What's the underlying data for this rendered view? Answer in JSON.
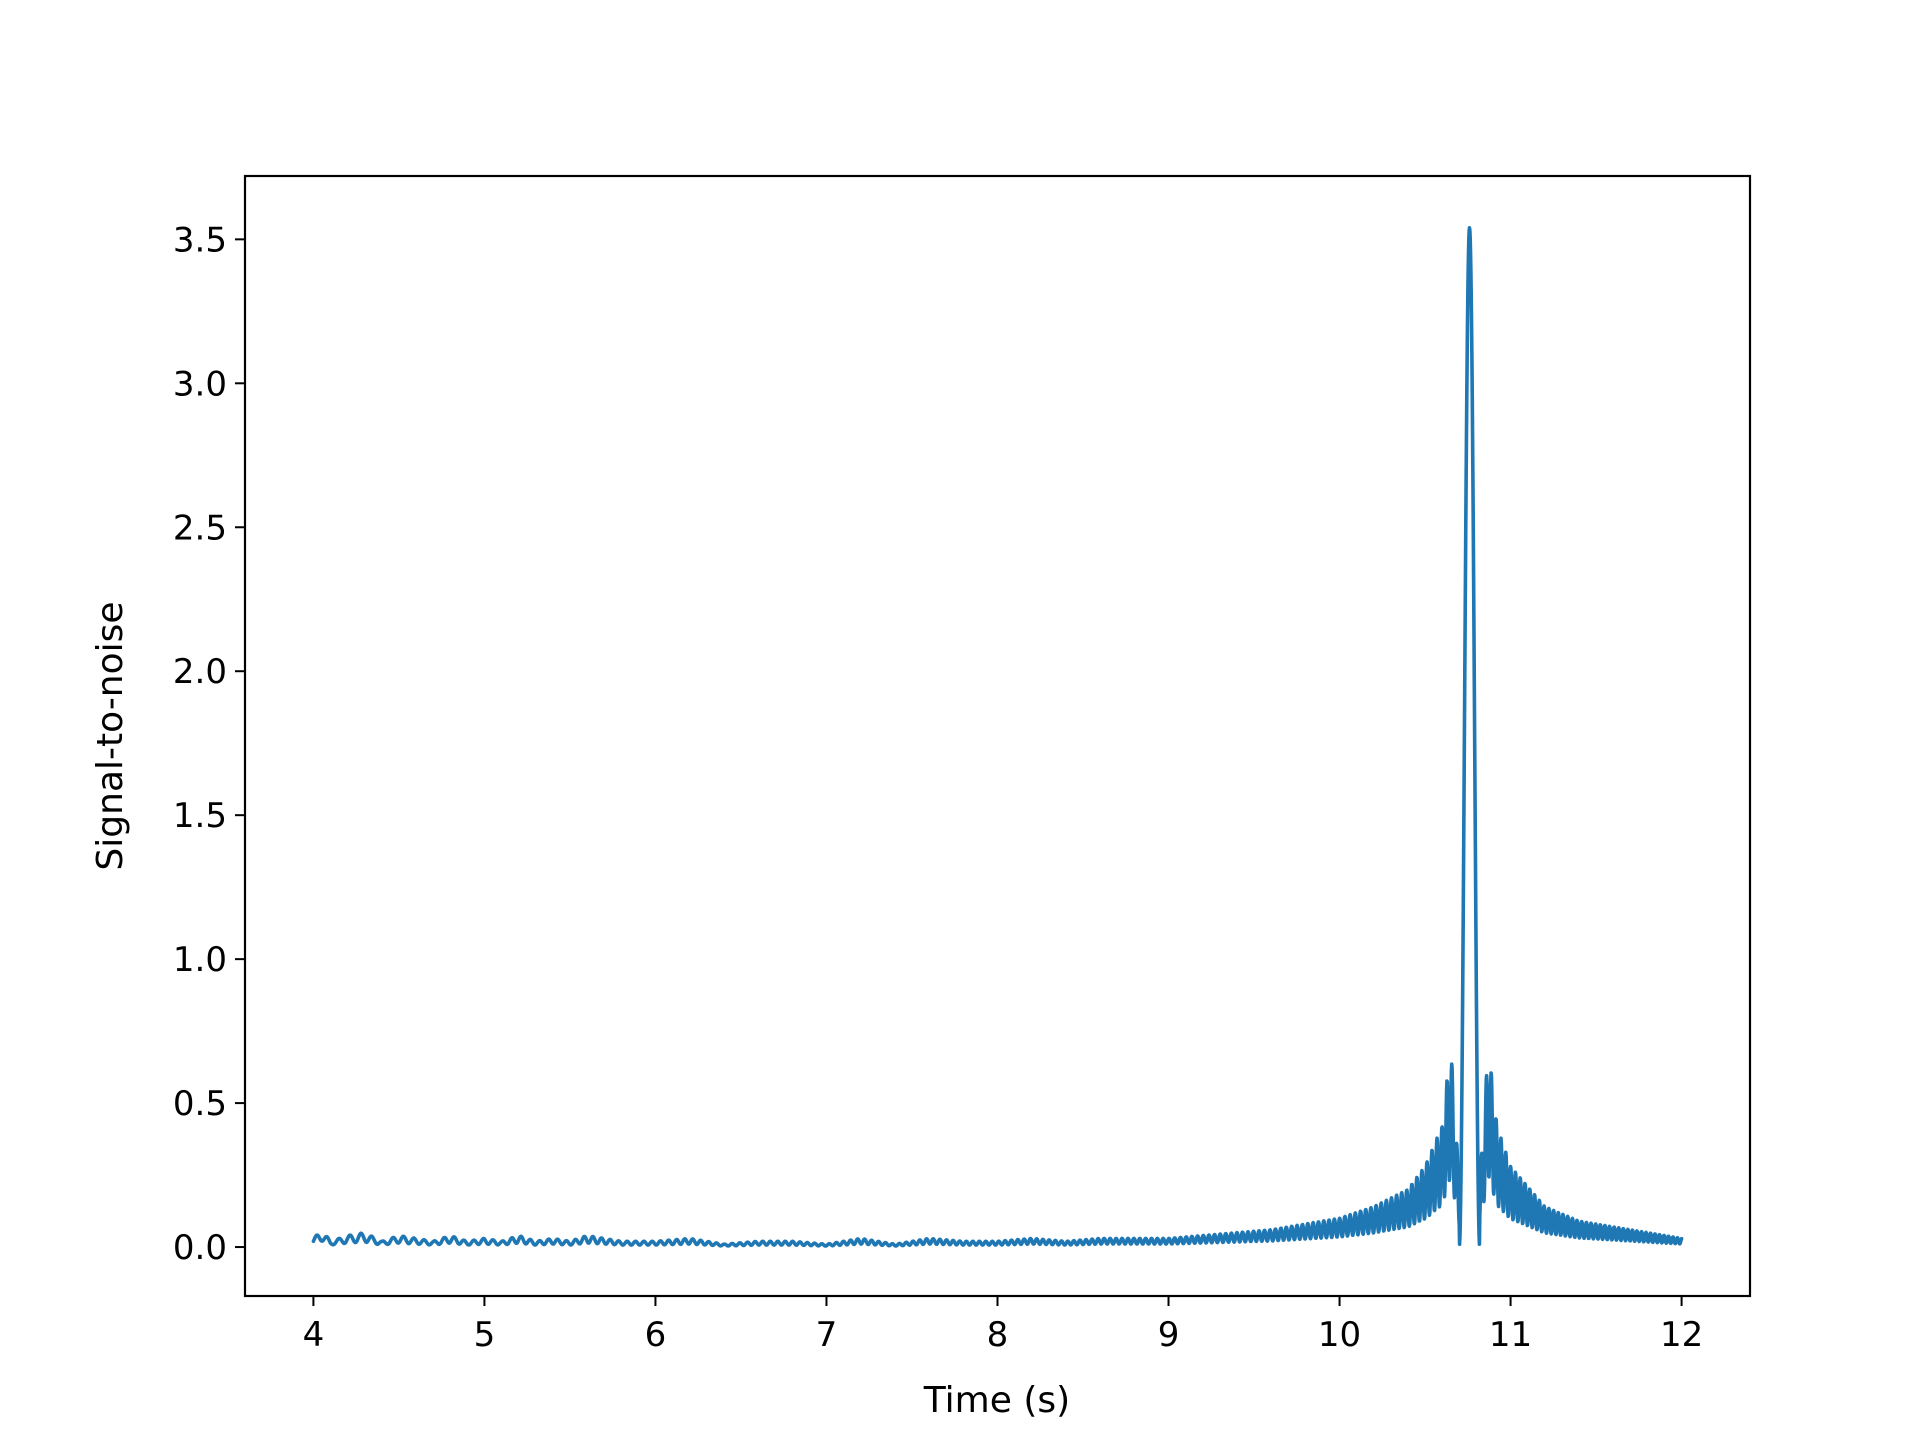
{
  "chart_data": {
    "type": "line",
    "xlabel": "Time (s)",
    "ylabel": "Signal-to-noise",
    "xlim": [
      3.6,
      12.4
    ],
    "ylim": [
      -0.17,
      3.72
    ],
    "xticks": [
      4,
      5,
      6,
      7,
      8,
      9,
      10,
      11,
      12
    ],
    "xtick_labels": [
      "4",
      "5",
      "6",
      "7",
      "8",
      "9",
      "10",
      "11",
      "12"
    ],
    "yticks": [
      0.0,
      0.5,
      1.0,
      1.5,
      2.0,
      2.5,
      3.0,
      3.5
    ],
    "ytick_labels": [
      "0.0",
      "0.5",
      "1.0",
      "1.5",
      "2.0",
      "2.5",
      "3.0",
      "3.5"
    ],
    "grid": false,
    "colors": {
      "line": "#1f77b4"
    },
    "series": [
      {
        "peak_x": 10.76,
        "peak_y": 3.54,
        "x": [
          4.0,
          4.05,
          4.1,
          4.2,
          4.3,
          4.4,
          4.5,
          4.6,
          4.7,
          4.8,
          4.9,
          5.0,
          5.1,
          5.2,
          5.3,
          5.4,
          5.5,
          5.6,
          5.7,
          5.8,
          5.9,
          6.0,
          6.2,
          6.4,
          6.6,
          6.8,
          7.0,
          7.2,
          7.4,
          7.6,
          7.8,
          8.0,
          8.2,
          8.4,
          8.6,
          8.8,
          9.0,
          9.2,
          9.4,
          9.6,
          9.8,
          10.0,
          10.2,
          10.4,
          10.5,
          10.6,
          10.65,
          10.7,
          10.76,
          10.82,
          10.87,
          10.92,
          11.0,
          11.2,
          11.4,
          11.6,
          11.8,
          12.0
        ],
        "y": [
          0.03,
          0.06,
          0.02,
          0.04,
          0.05,
          0.02,
          0.04,
          0.03,
          0.02,
          0.04,
          0.02,
          0.03,
          0.02,
          0.04,
          0.02,
          0.03,
          0.02,
          0.04,
          0.03,
          0.02,
          0.02,
          0.02,
          0.03,
          0.01,
          0.02,
          0.02,
          0.01,
          0.03,
          0.01,
          0.03,
          0.02,
          0.02,
          0.03,
          0.02,
          0.03,
          0.03,
          0.03,
          0.04,
          0.05,
          0.06,
          0.08,
          0.1,
          0.14,
          0.2,
          0.28,
          0.42,
          0.7,
          0.22,
          3.54,
          0.22,
          0.7,
          0.42,
          0.28,
          0.14,
          0.09,
          0.07,
          0.05,
          0.03
        ]
      }
    ]
  }
}
